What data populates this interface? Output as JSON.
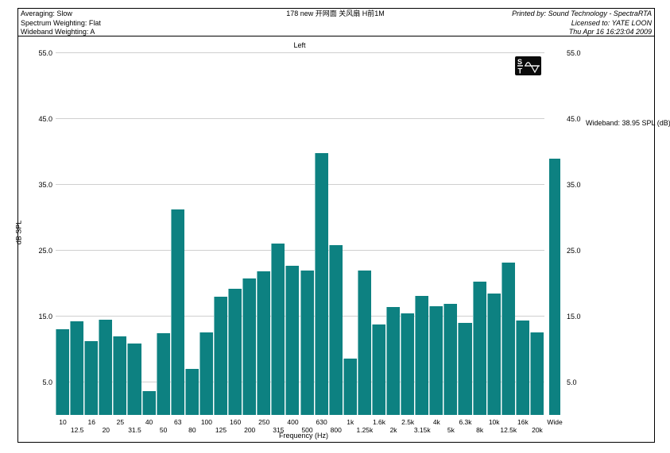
{
  "header": {
    "left": [
      "Averaging: Slow",
      "Spectrum Weighting: Flat",
      "Wideband Weighting: A"
    ],
    "center_title": "178  new 开网面  关风扇  H前1M",
    "right": [
      "Printed by: Sound Technology - SpectraRTA",
      "Licensed to: YATE LOON",
      "Thu Apr 16 16:23:04 2009"
    ]
  },
  "logo": {
    "name": "Sound Technology ST logo",
    "letters": [
      "S",
      "T"
    ]
  },
  "annotation": "Wideband: 38.95 SPL (dB)",
  "chart_data": {
    "type": "bar",
    "title": "Left",
    "xlabel": "Frequency (Hz)",
    "ylabel": "dB SPL",
    "ylim": [
      0,
      55
    ],
    "yticks": [
      5.0,
      15.0,
      25.0,
      35.0,
      45.0,
      55.0
    ],
    "ytick_labels": [
      "5.0",
      "15.0",
      "25.0",
      "35.0",
      "45.0",
      "55.0"
    ],
    "grid": true,
    "legend": "none",
    "bar_color": "#0d8181",
    "categories": [
      "10",
      "12.5",
      "16",
      "20",
      "25",
      "31.5",
      "40",
      "50",
      "63",
      "80",
      "100",
      "125",
      "160",
      "200",
      "250",
      "315",
      "400",
      "500",
      "630",
      "800",
      "1k",
      "1.25k",
      "1.6k",
      "2k",
      "2.5k",
      "3.15k",
      "4k",
      "5k",
      "6.3k",
      "8k",
      "10k",
      "12.5k",
      "16k",
      "20k"
    ],
    "values": [
      13.0,
      14.2,
      11.2,
      14.5,
      12.0,
      10.8,
      3.6,
      12.4,
      31.3,
      7.0,
      12.6,
      18.0,
      19.2,
      20.8,
      21.8,
      26.1,
      22.7,
      22.0,
      39.8,
      25.8,
      8.6,
      22.0,
      13.8,
      16.4,
      15.4,
      18.1,
      16.5,
      16.9,
      14.0,
      20.3,
      18.5,
      23.1,
      14.3,
      12.6
    ],
    "wideband": {
      "label": "Wide",
      "value": 38.95
    }
  }
}
